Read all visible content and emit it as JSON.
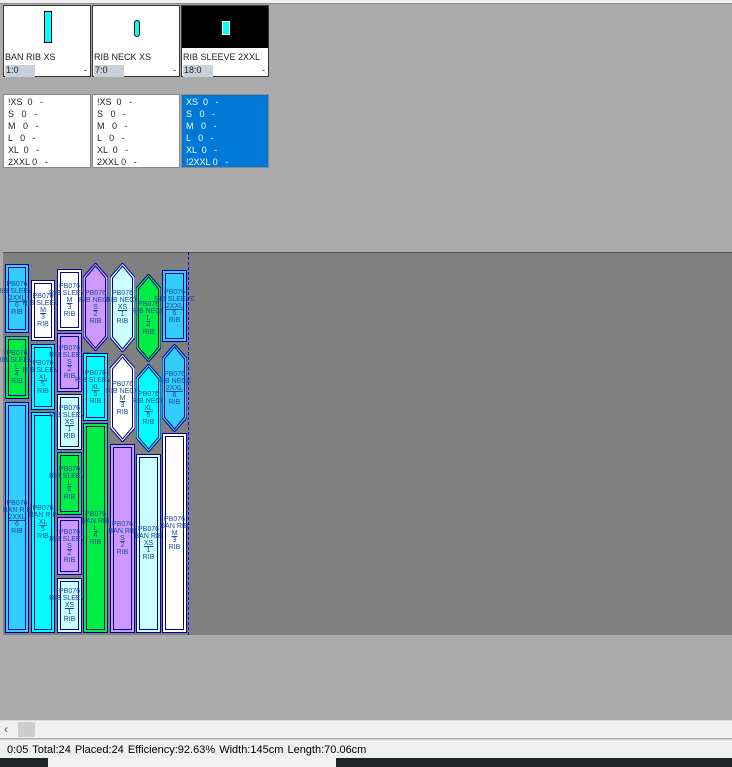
{
  "cards": [
    {
      "name": "BAN RIB XS",
      "count": "1:0",
      "dash": "-",
      "selected": false
    },
    {
      "name": "RIB NECK XS",
      "count": "7:0",
      "dash": "-",
      "selected": false
    },
    {
      "name": "RIB SLEEVE 2XXL",
      "count": "18:0",
      "dash": "-",
      "selected": true
    }
  ],
  "size_lists": [
    {
      "lines": [
        "!XS  0   -",
        "S   0   -",
        "M   0   -",
        "L   0   -",
        "XL  0   -",
        "2XXL 0   -"
      ],
      "selected": false
    },
    {
      "lines": [
        "!XS  0   -",
        "S   0   -",
        "M   0   -",
        "L   0   -",
        "XL  0   -",
        "2XXL 0   -"
      ],
      "selected": false
    },
    {
      "lines": [
        "XS  0   -",
        "S   0   -",
        "M   0   -",
        "L   0   -",
        "XL  0   -",
        "!2XXL 0   -"
      ],
      "selected": true
    }
  ],
  "colors": {
    "XS": "#ccffff",
    "S": "#cc99ff",
    "M": "#ffffff",
    "L": "#00ee44",
    "XL": "#00ffff",
    "2XXL": "#33ccff",
    "accent": "#0078d7",
    "sheet": "#808080"
  },
  "pieces": [
    {
      "code": "PB076",
      "name": "RIB SLEEVE",
      "size": "2XXL",
      "qty": "6",
      "tag": "RIB",
      "shape": "rect"
    },
    {
      "code": "PB076",
      "name": "RIB SLEEVE",
      "size": "L",
      "qty": "4",
      "tag": "RIB",
      "shape": "rect"
    },
    {
      "code": "PB076",
      "name": "BAN RIB",
      "size": "2XXL",
      "qty": "6",
      "tag": "RIB",
      "shape": "rect"
    },
    {
      "code": "PB076",
      "name": "RIB SLEEVE",
      "size": "M",
      "qty": "3",
      "tag": "RIB",
      "shape": "rect"
    },
    {
      "code": "PB076",
      "name": "RIB SLEEVE",
      "size": "XL",
      "qty": "5",
      "tag": "RIB",
      "shape": "rect"
    },
    {
      "code": "PB076",
      "name": "BAN RIB",
      "size": "XL",
      "qty": "5",
      "tag": "RIB",
      "shape": "rect"
    },
    {
      "code": "PB076",
      "name": "RIB SLEEVE",
      "size": "M",
      "qty": "3",
      "tag": "RIB",
      "shape": "rect"
    },
    {
      "code": "PB076",
      "name": "RIB SLEEVE",
      "size": "S",
      "qty": "2",
      "tag": "RIB",
      "shape": "rect"
    },
    {
      "code": "PB076",
      "name": "RIB SLEEVE",
      "size": "XS",
      "qty": "1",
      "tag": "RIB",
      "shape": "rect"
    },
    {
      "code": "PB076",
      "name": "RIB SLEEVE",
      "size": "L",
      "qty": "4",
      "tag": "RIB",
      "shape": "rect"
    },
    {
      "code": "PB076",
      "name": "RIB SLEEVE",
      "size": "S",
      "qty": "2",
      "tag": "RIB",
      "shape": "rect"
    },
    {
      "code": "PB076",
      "name": "RIB SLEEVE",
      "size": "XS",
      "qty": "1",
      "tag": "RIB",
      "shape": "rect"
    },
    {
      "code": "PB076",
      "name": "RIB NECK",
      "size": "S",
      "qty": "2",
      "tag": "RIB",
      "shape": "hex"
    },
    {
      "code": "PB076",
      "name": "RIB SLEEVE",
      "size": "XL",
      "qty": "5",
      "tag": "RIB",
      "shape": "rect"
    },
    {
      "code": "PB076",
      "name": "BAN RIB",
      "size": "L",
      "qty": "4",
      "tag": "RIB",
      "shape": "rect"
    },
    {
      "code": "PB076",
      "name": "RIB NECK",
      "size": "XS",
      "qty": "1",
      "tag": "RIB",
      "shape": "hex"
    },
    {
      "code": "PB076",
      "name": "RIB NECK",
      "size": "M",
      "qty": "3",
      "tag": "RIB",
      "shape": "hex"
    },
    {
      "code": "PB076",
      "name": "BAN RIB",
      "size": "S",
      "qty": "2",
      "tag": "RIB",
      "shape": "rect"
    },
    {
      "code": "PB076",
      "name": "RIB NECK",
      "size": "L",
      "qty": "4",
      "tag": "RIB",
      "shape": "hex"
    },
    {
      "code": "PB076",
      "name": "RIB NECK",
      "size": "XL",
      "qty": "5",
      "tag": "RIB",
      "shape": "hex"
    },
    {
      "code": "PB076",
      "name": "BAN RIB",
      "size": "XS",
      "qty": "1",
      "tag": "RIB",
      "shape": "rect"
    },
    {
      "code": "PB076",
      "name": "RIB SLEEVE",
      "size": "2XXL",
      "qty": "6",
      "tag": "RIB",
      "shape": "rect"
    },
    {
      "code": "PB076",
      "name": "RIB NECK",
      "size": "2XXL",
      "qty": "6",
      "tag": "RIB",
      "shape": "hex"
    },
    {
      "code": "PB076",
      "name": "BAN RIB",
      "size": "M",
      "qty": "3",
      "tag": "RIB",
      "shape": "rect"
    }
  ],
  "scrollbar": {
    "left_arrow": "‹"
  },
  "status": {
    "time": "0:05",
    "total": "Total:24",
    "placed": "Placed:24",
    "efficiency": "Efficiency:92.63%",
    "width": "Width:145cm",
    "length": "Length:70.06cm"
  }
}
